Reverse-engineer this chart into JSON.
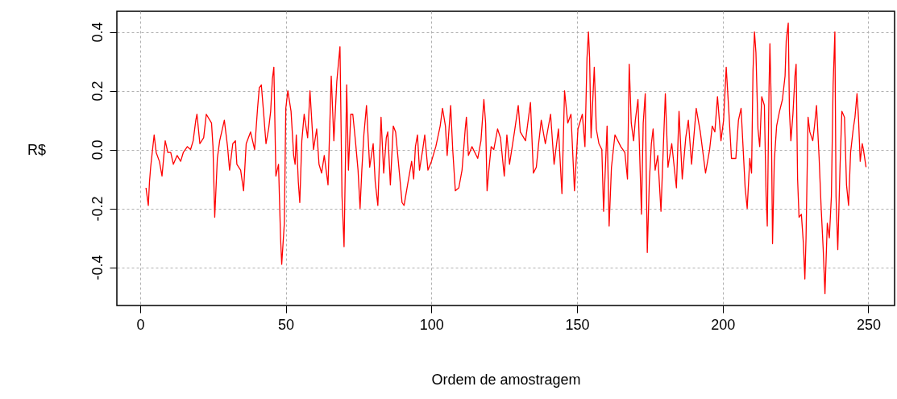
{
  "chart_data": {
    "type": "line",
    "xlabel": "Ordem de amostragem",
    "ylabel": "R$",
    "xlim": [
      -8,
      259
    ],
    "ylim": [
      -0.53,
      0.47
    ],
    "xticks": [
      0,
      50,
      100,
      150,
      200,
      250
    ],
    "yticks": [
      {
        "value": -0.4,
        "label": "-0.4"
      },
      {
        "value": -0.2,
        "label": "-0.2"
      },
      {
        "value": 0,
        "label": "0.0"
      },
      {
        "value": 0.2,
        "label": "0.2"
      },
      {
        "value": 0.4,
        "label": "0.4"
      }
    ],
    "grid": true,
    "series": [
      {
        "color": "#ff0000",
        "x": [
          2,
          2.8,
          3.2,
          3.6,
          4.8,
          5.5,
          6.6,
          7.5,
          8.6,
          9.5,
          10.5,
          11.4,
          12.7,
          13.9,
          14.8,
          16.2,
          17.3,
          18.2,
          19.1,
          19.5,
          20.5,
          21.8,
          22.7,
          24.5,
          25,
          25.6,
          26.5,
          27.3,
          28.9,
          30,
          30.7,
          31.8,
          32.7,
          33.2,
          34.5,
          35.5,
          36.4,
          37.9,
          39.3,
          40.3,
          40.9,
          41.6,
          42.5,
          43.2,
          44.1,
          44.8,
          45.4,
          45.9,
          46.6,
          47.5,
          48.2,
          48.6,
          49.5,
          50,
          50.7,
          51.8,
          52.7,
          53.2,
          53.6,
          54.3,
          54.8,
          55.5,
          56.3,
          57.5,
          58.3,
          59.5,
          60.6,
          61.4,
          62.3,
          63.2,
          64.5,
          65.6,
          66.5,
          67.5,
          68.6,
          69.3,
          70,
          70.9,
          71.5,
          72.3,
          73,
          73.9,
          74.8,
          75.5,
          76.1,
          76.8,
          77.7,
          78.8,
          80,
          80.7,
          81.6,
          82.7,
          83.6,
          84.5,
          85,
          85.9,
          86.9,
          87.7,
          89,
          89.9,
          90.6,
          91.8,
          93.2,
          93.9,
          94.5,
          95.2,
          95.9,
          97,
          97.7,
          98.8,
          100,
          101.5,
          103,
          103.8,
          104.8,
          105.4,
          106.6,
          107.3,
          108.2,
          109.4,
          110.5,
          111.6,
          112,
          112.7,
          113.9,
          115.9,
          117,
          118,
          118.6,
          119.1,
          119.7,
          120.5,
          121.4,
          122.7,
          123.7,
          125,
          125.9,
          126.8,
          128.5,
          129.8,
          130.5,
          132.3,
          134,
          135,
          136,
          136.8,
          137.7,
          139.1,
          140.9,
          142.1,
          143.6,
          144.8,
          145.7,
          146.8,
          147.9,
          149.1,
          150.3,
          151.8,
          152.7,
          153.4,
          153.9,
          154.3,
          154.8,
          155.9,
          156.6,
          157.5,
          158.5,
          159.1,
          160.3,
          161,
          161.8,
          163,
          165,
          166.4,
          167.3,
          167.9,
          168.6,
          169.4,
          170,
          170.9,
          171.5,
          172.1,
          172.7,
          173.4,
          174.1,
          174.8,
          175.5,
          176.1,
          176.8,
          177.7,
          178.8,
          179.5,
          180.3,
          181.2,
          182.5,
          184.1,
          185,
          186.1,
          187.3,
          188.2,
          189.3,
          190.9,
          192.3,
          194.1,
          195.5,
          196.4,
          197.3,
          198.2,
          199.4,
          200.3,
          201.2,
          202.1,
          203,
          204.5,
          205.4,
          206.3,
          207.7,
          208.4,
          209.3,
          209.9,
          210.4,
          210.9,
          211.4,
          212.1,
          212.7,
          213.4,
          214.3,
          214.9,
          215.3,
          215.9,
          216.2,
          216.6,
          217.1,
          217.7,
          218.5,
          219.5,
          220.5,
          221.4,
          221.8,
          222.5,
          222.9,
          223.4,
          224.1,
          224.8,
          225.2,
          225.7,
          226.2,
          227,
          227.7,
          228.2,
          228.6,
          229.3,
          229.9,
          230.9,
          231.5,
          232.2,
          233.1,
          233.8,
          234.5,
          235.1,
          235.9,
          236.6,
          237.3,
          237.9,
          238.5,
          238.9,
          239.5,
          240.3,
          240.9,
          241.8,
          242.5,
          243.2,
          243.9,
          244.8,
          245.4,
          246.1,
          246.6,
          247.2,
          247.9,
          248.3,
          249.2
        ],
        "values": [
          -0.13,
          -0.19,
          -0.11,
          -0.06,
          0.05,
          -0.01,
          -0.04,
          -0.09,
          0.03,
          -0.01,
          -0.01,
          -0.05,
          -0.02,
          -0.04,
          -0.01,
          0.01,
          0.0,
          0.03,
          0.1,
          0.12,
          0.02,
          0.04,
          0.12,
          0.09,
          0.01,
          -0.23,
          -0.03,
          0.03,
          0.1,
          0.01,
          -0.07,
          0.02,
          0.03,
          -0.05,
          -0.07,
          -0.14,
          0.02,
          0.06,
          0.0,
          0.14,
          0.21,
          0.22,
          0.11,
          0.02,
          0.07,
          0.13,
          0.24,
          0.28,
          -0.09,
          -0.05,
          -0.3,
          -0.39,
          -0.25,
          0.14,
          0.2,
          0.13,
          -0.02,
          -0.05,
          0.05,
          -0.11,
          -0.18,
          0.03,
          0.12,
          0.04,
          0.2,
          0.0,
          0.07,
          -0.05,
          -0.08,
          -0.02,
          -0.12,
          0.25,
          0.03,
          0.23,
          0.35,
          -0.16,
          -0.33,
          0.22,
          -0.07,
          0.12,
          0.12,
          0.03,
          -0.07,
          -0.2,
          -0.07,
          0.05,
          0.15,
          -0.06,
          0.02,
          -0.11,
          -0.19,
          0.11,
          -0.08,
          0.04,
          0.06,
          -0.12,
          0.08,
          0.06,
          -0.08,
          -0.18,
          -0.19,
          -0.12,
          -0.04,
          -0.1,
          0.01,
          0.05,
          -0.07,
          0.0,
          0.05,
          -0.07,
          -0.04,
          0.01,
          0.08,
          0.14,
          0.08,
          -0.02,
          0.15,
          0.0,
          -0.14,
          -0.13,
          -0.07,
          0.07,
          0.11,
          -0.02,
          0.01,
          -0.03,
          0.03,
          0.17,
          0.09,
          -0.14,
          -0.07,
          0.01,
          0.0,
          0.07,
          0.04,
          -0.09,
          0.05,
          -0.05,
          0.06,
          0.15,
          0.06,
          0.03,
          0.16,
          -0.08,
          -0.06,
          0.02,
          0.1,
          0.02,
          0.12,
          -0.05,
          0.07,
          -0.15,
          0.2,
          0.09,
          0.12,
          -0.14,
          0.07,
          0.12,
          0.01,
          0.31,
          0.4,
          0.31,
          0.04,
          0.28,
          0.07,
          0.02,
          0.0,
          -0.21,
          0.08,
          -0.26,
          -0.06,
          0.05,
          0.01,
          -0.01,
          -0.1,
          0.29,
          0.09,
          0.03,
          0.1,
          0.17,
          -0.02,
          -0.22,
          0.09,
          0.19,
          -0.35,
          -0.11,
          0.02,
          0.07,
          -0.07,
          -0.02,
          -0.21,
          -0.02,
          0.19,
          -0.06,
          0.02,
          -0.13,
          0.13,
          -0.1,
          0.04,
          0.1,
          -0.05,
          0.14,
          0.06,
          -0.08,
          0.0,
          0.08,
          0.06,
          0.18,
          0.03,
          0.1,
          0.28,
          0.13,
          -0.03,
          -0.03,
          0.1,
          0.14,
          -0.13,
          -0.2,
          -0.03,
          -0.08,
          0.27,
          0.4,
          0.33,
          0.07,
          0.01,
          0.18,
          0.15,
          -0.16,
          -0.26,
          0.21,
          0.36,
          0.18,
          -0.32,
          -0.04,
          0.08,
          0.13,
          0.17,
          0.25,
          0.37,
          0.43,
          0.13,
          0.03,
          0.12,
          0.25,
          0.29,
          -0.1,
          -0.23,
          -0.22,
          -0.32,
          -0.44,
          -0.3,
          0.11,
          0.06,
          0.03,
          0.08,
          0.15,
          -0.03,
          -0.2,
          -0.34,
          -0.49,
          -0.25,
          -0.3,
          -0.16,
          0.22,
          0.4,
          -0.16,
          -0.34,
          -0.05,
          0.13,
          0.11,
          -0.12,
          -0.19,
          -0.01,
          0.07,
          0.11,
          0.19,
          0.11,
          -0.04,
          0.02,
          0.0,
          -0.06
        ]
      }
    ]
  }
}
